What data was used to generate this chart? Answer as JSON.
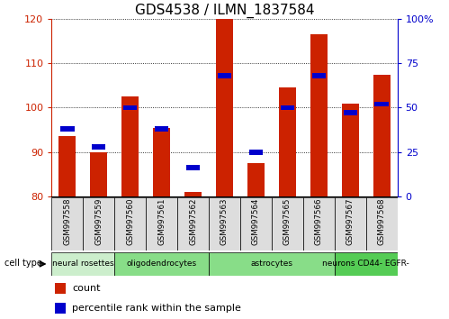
{
  "title": "GDS4538 / ILMN_1837584",
  "samples": [
    "GSM997558",
    "GSM997559",
    "GSM997560",
    "GSM997561",
    "GSM997562",
    "GSM997563",
    "GSM997564",
    "GSM997565",
    "GSM997566",
    "GSM997567",
    "GSM997568"
  ],
  "bar_values": [
    93.5,
    90.0,
    102.5,
    95.5,
    81.0,
    120.0,
    87.5,
    104.5,
    116.5,
    101.0,
    107.5
  ],
  "percentile_values": [
    38,
    28,
    50,
    38,
    16,
    68,
    25,
    50,
    68,
    47,
    52
  ],
  "bar_color": "#cc2200",
  "percentile_color": "#0000cc",
  "ylim_left": [
    80,
    120
  ],
  "ylim_right": [
    0,
    100
  ],
  "yticks_left": [
    80,
    90,
    100,
    110,
    120
  ],
  "yticks_right": [
    0,
    25,
    50,
    75,
    100
  ],
  "ytick_labels_right": [
    "0",
    "25",
    "50",
    "75",
    "100%"
  ],
  "groups": [
    {
      "label": "neural rosettes",
      "indices": [
        0,
        1
      ],
      "color": "#cceecc"
    },
    {
      "label": "oligodendrocytes",
      "indices": [
        2,
        3,
        4
      ],
      "color": "#88dd88"
    },
    {
      "label": "astrocytes",
      "indices": [
        5,
        6,
        7,
        8
      ],
      "color": "#88dd88"
    },
    {
      "label": "neurons CD44- EGFR-",
      "indices": [
        9,
        10
      ],
      "color": "#55cc55"
    }
  ],
  "legend_count_label": "count",
  "legend_percentile_label": "percentile rank within the sample",
  "cell_type_label": "cell type",
  "bar_bottom": 80,
  "bar_width": 0.55,
  "background_color": "#ffffff",
  "left_axis_color": "#cc2200",
  "right_axis_color": "#0000cc",
  "sample_box_color": "#dddddd",
  "title_fontsize": 11,
  "axis_fontsize": 8,
  "tick_fontsize": 8,
  "legend_fontsize": 8
}
